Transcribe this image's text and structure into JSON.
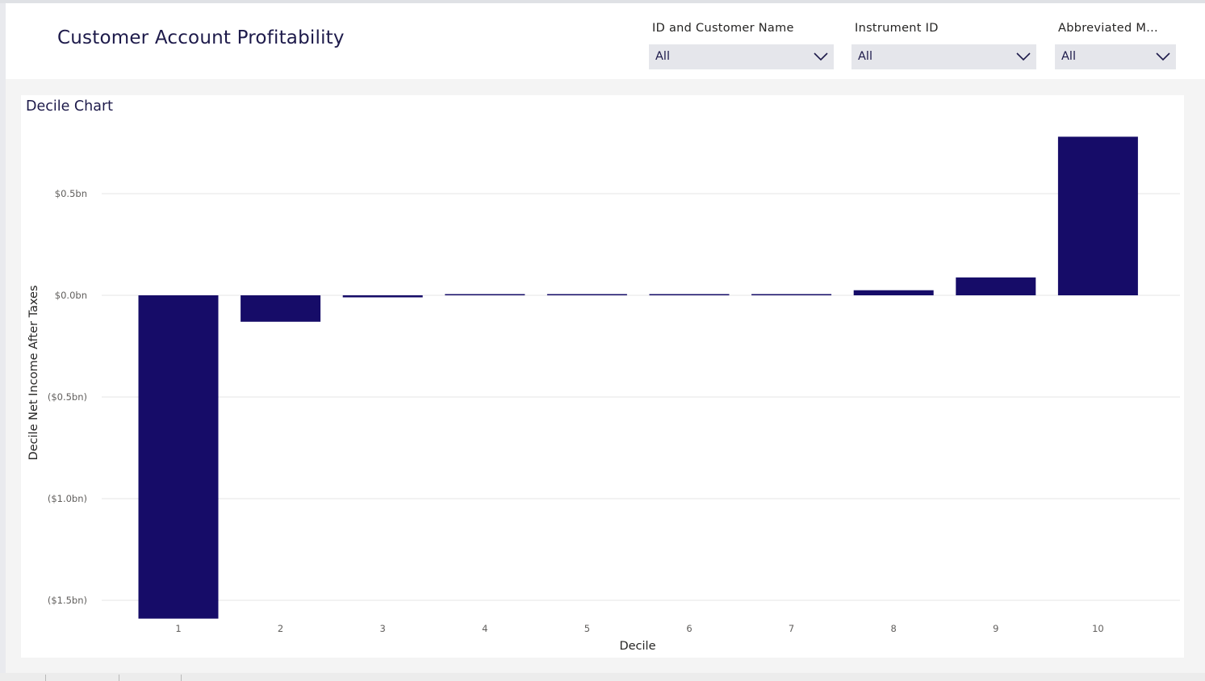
{
  "page": {
    "title": "Customer Account Profitability"
  },
  "slicers": [
    {
      "label": "ID and Customer Name",
      "value": "All"
    },
    {
      "label": "Instrument ID",
      "value": "All"
    },
    {
      "label": "Abbreviated M...",
      "value": "All"
    }
  ],
  "icons": {
    "dropdown": "chevron-down-icon"
  },
  "colors": {
    "bar": "#160c68",
    "gridline": "#e6e6e6"
  },
  "chart_data": {
    "type": "bar",
    "title": "Decile Chart",
    "xlabel": "Decile",
    "ylabel": "Decile Net Income After Taxes",
    "categories": [
      "1",
      "2",
      "3",
      "4",
      "5",
      "6",
      "7",
      "8",
      "9",
      "10"
    ],
    "values": [
      -1.59,
      -0.13,
      -0.01,
      0.003,
      0.003,
      0.003,
      0.004,
      0.025,
      0.088,
      0.78
    ],
    "unit": "bn",
    "yticks": [
      {
        "value": 0.5,
        "label": "$0.5bn"
      },
      {
        "value": 0.0,
        "label": "$0.0bn"
      },
      {
        "value": -0.5,
        "label": "($0.5bn)"
      },
      {
        "value": -1.0,
        "label": "($1.0bn)"
      },
      {
        "value": -1.5,
        "label": "($1.5bn)"
      }
    ],
    "ylim": [
      -1.59,
      0.78
    ],
    "grid": true
  }
}
